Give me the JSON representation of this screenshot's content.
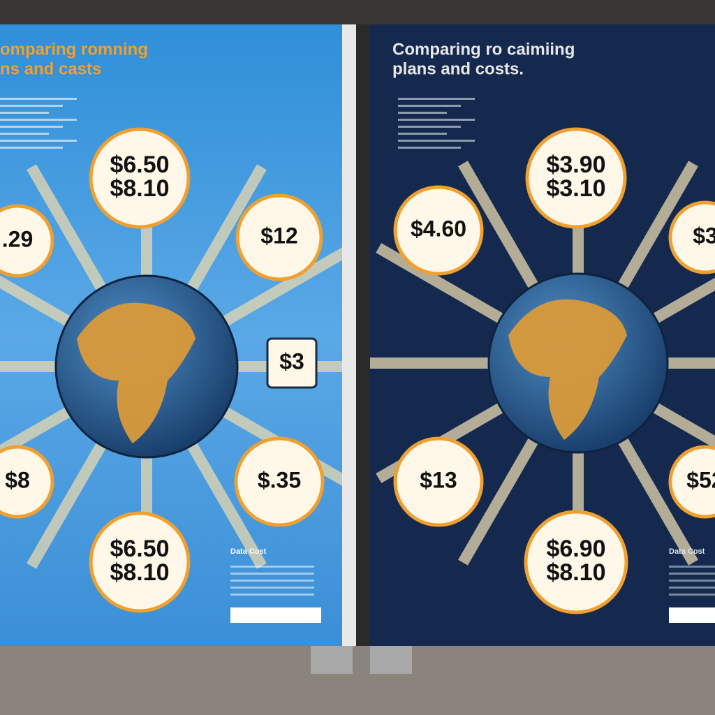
{
  "posters": [
    {
      "title": [
        "omparing romning",
        "ns and casts"
      ],
      "circles": [
        {
          "lines": [
            "$6.50",
            "$8.10"
          ]
        },
        {
          "lines": [
            ".29"
          ]
        },
        {
          "lines": [
            "$12"
          ]
        },
        {
          "lines": [
            "$3"
          ]
        },
        {
          "lines": [
            "$8"
          ]
        },
        {
          "lines": [
            "$.35"
          ]
        },
        {
          "lines": [
            "$6.50",
            "$8.10"
          ]
        }
      ],
      "footer": "Data Cost"
    },
    {
      "title": [
        "Comparing ro caimiing",
        "plans and costs."
      ],
      "circles": [
        {
          "lines": [
            "$3.90",
            "$3.10"
          ]
        },
        {
          "lines": [
            "$4.60"
          ]
        },
        {
          "lines": [
            "$3"
          ]
        },
        {
          "lines": [
            "$13"
          ]
        },
        {
          "lines": [
            "$52"
          ]
        },
        {
          "lines": [
            "$6.90",
            "$8.10"
          ]
        }
      ],
      "footer": "Data Cost"
    }
  ]
}
